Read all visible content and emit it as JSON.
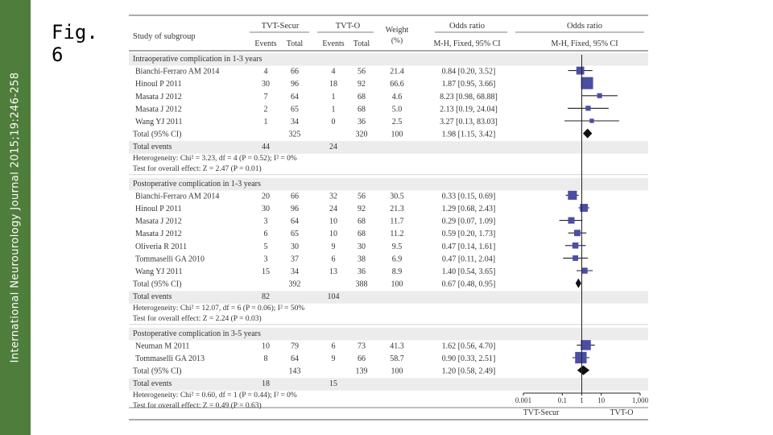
{
  "sidebar": {
    "text": "International Neurourology Journal 2015;19:246-258"
  },
  "figure_label": "Fig.\n6",
  "chart_data": {
    "type": "forest",
    "header": {
      "study": "Study of subgroup",
      "group1": "TVT-Secur",
      "group2": "TVT-O",
      "events": "Events",
      "total": "Total",
      "weight": "Weight",
      "weight_unit": "(%)",
      "or_title": "Odds ratio",
      "or_method": "M-H, Fixed, 95% CI"
    },
    "xscale": "log",
    "xlim": [
      0.001,
      1000
    ],
    "xticks": [
      "0.001",
      "0.1",
      "1",
      "10",
      "1,000"
    ],
    "favours_left": "TVT-Secur",
    "favours_right": "TVT-O",
    "subgroups": [
      {
        "title": "Intraoperative complication in 1-3 years",
        "studies": [
          {
            "name": "Bianchi-Ferraro AM 2014",
            "e1": "4",
            "t1": "66",
            "e2": "4",
            "t2": "56",
            "weight": "21.4",
            "or": 0.84,
            "lo": 0.2,
            "hi": 3.52,
            "ci": "0.84 [0.20, 3.52]"
          },
          {
            "name": "Hinoul P 2011",
            "e1": "30",
            "t1": "96",
            "e2": "18",
            "t2": "92",
            "weight": "66.6",
            "or": 1.87,
            "lo": 0.95,
            "hi": 3.66,
            "ci": "1.87 [0.95, 3.66]"
          },
          {
            "name": "Masata J 2012",
            "e1": "7",
            "t1": "64",
            "e2": "1",
            "t2": "68",
            "weight": "4.6",
            "or": 8.23,
            "lo": 0.98,
            "hi": 68.88,
            "ci": "8.23 [0.98, 68.88]"
          },
          {
            "name": "Masata J 2012",
            "e1": "2",
            "t1": "65",
            "e2": "1",
            "t2": "68",
            "weight": "5.0",
            "or": 2.13,
            "lo": 0.19,
            "hi": 24.04,
            "ci": "2.13 [0.19, 24.04]"
          },
          {
            "name": "Wang YJ 2011",
            "e1": "1",
            "t1": "34",
            "e2": "0",
            "t2": "36",
            "weight": "2.5",
            "or": 3.27,
            "lo": 0.13,
            "hi": 83.03,
            "ci": "3.27 [0.13, 83.03]"
          }
        ],
        "total": {
          "label": "Total (95% CI)",
          "t1": "325",
          "t2": "320",
          "weight": "100",
          "or": 1.98,
          "lo": 1.15,
          "hi": 3.42,
          "ci": "1.98 [1.15, 3.42]"
        },
        "events": {
          "label": "Total events",
          "e1": "44",
          "e2": "24"
        },
        "heterogeneity": "Heterogeneity: Chi² = 3.23, df = 4 (P = 0.52); I² = 0%",
        "overall": "Test for overall effect: Z = 2.47 (P = 0.01)"
      },
      {
        "title": "Postoperative complication in 1-3 years",
        "studies": [
          {
            "name": "Bianchi-Ferraro AM 2014",
            "e1": "20",
            "t1": "66",
            "e2": "32",
            "t2": "56",
            "weight": "30.5",
            "or": 0.33,
            "lo": 0.15,
            "hi": 0.69,
            "ci": "0.33 [0.15, 0.69]"
          },
          {
            "name": "Hinoul P 2011",
            "e1": "30",
            "t1": "96",
            "e2": "24",
            "t2": "92",
            "weight": "21.3",
            "or": 1.29,
            "lo": 0.68,
            "hi": 2.43,
            "ci": "1.29 [0.68, 2.43]"
          },
          {
            "name": "Masata J 2012",
            "e1": "3",
            "t1": "64",
            "e2": "10",
            "t2": "68",
            "weight": "11.7",
            "or": 0.29,
            "lo": 0.07,
            "hi": 1.09,
            "ci": "0.29 [0.07, 1.09]"
          },
          {
            "name": "Masata J 2012",
            "e1": "6",
            "t1": "65",
            "e2": "10",
            "t2": "68",
            "weight": "11.2",
            "or": 0.59,
            "lo": 0.2,
            "hi": 1.73,
            "ci": "0.59 [0.20, 1.73]"
          },
          {
            "name": "Oliveria R 2011",
            "e1": "5",
            "t1": "30",
            "e2": "9",
            "t2": "30",
            "weight": "9.5",
            "or": 0.47,
            "lo": 0.14,
            "hi": 1.61,
            "ci": "0.47 [0.14, 1.61]"
          },
          {
            "name": "Tommaselli GA 2010",
            "e1": "3",
            "t1": "37",
            "e2": "6",
            "t2": "38",
            "weight": "6.9",
            "or": 0.47,
            "lo": 0.11,
            "hi": 2.04,
            "ci": "0.47 [0.11, 2.04]"
          },
          {
            "name": "Wang YJ 2011",
            "e1": "15",
            "t1": "34",
            "e2": "13",
            "t2": "36",
            "weight": "8.9",
            "or": 1.4,
            "lo": 0.54,
            "hi": 3.65,
            "ci": "1.40 [0.54, 3.65]"
          }
        ],
        "total": {
          "label": "Total (95% CI)",
          "t1": "392",
          "t2": "388",
          "weight": "100",
          "or": 0.67,
          "lo": 0.48,
          "hi": 0.95,
          "ci": "0.67 [0.48, 0.95]"
        },
        "events": {
          "label": "Total events",
          "e1": "82",
          "e2": "104"
        },
        "heterogeneity": "Heterogeneity: Chi² = 12.07, df = 6 (P = 0.06); I² = 50%",
        "overall": "Test for overall effect: Z = 2.24 (P = 0.03)"
      },
      {
        "title": "Postoperative complication in 3-5 years",
        "studies": [
          {
            "name": "Neuman M 2011",
            "e1": "10",
            "t1": "79",
            "e2": "6",
            "t2": "73",
            "weight": "41.3",
            "or": 1.62,
            "lo": 0.56,
            "hi": 4.7,
            "ci": "1.62 [0.56, 4.70]"
          },
          {
            "name": "Tommaselli GA 2013",
            "e1": "8",
            "t1": "64",
            "e2": "9",
            "t2": "66",
            "weight": "58.7",
            "or": 0.9,
            "lo": 0.33,
            "hi": 2.51,
            "ci": "0.90 [0.33, 2.51]"
          }
        ],
        "total": {
          "label": "Total (95% CI)",
          "t1": "143",
          "t2": "139",
          "weight": "100",
          "or": 1.2,
          "lo": 0.58,
          "hi": 2.49,
          "ci": "1.20 [0.58, 2.49]"
        },
        "events": {
          "label": "Total events",
          "e1": "18",
          "e2": "15"
        },
        "heterogeneity": "Heterogeneity: Chi² = 0.60, df = 1 (P = 0.44); I² = 0%",
        "overall": "Test for overall effect: Z = 0.49 (P = 0.63)"
      }
    ]
  },
  "colors": {
    "sidebar": "#4f7d3b",
    "marker": "#4a4fa3",
    "shade": "#ececec",
    "rule": "#555555",
    "text": "#333333"
  }
}
